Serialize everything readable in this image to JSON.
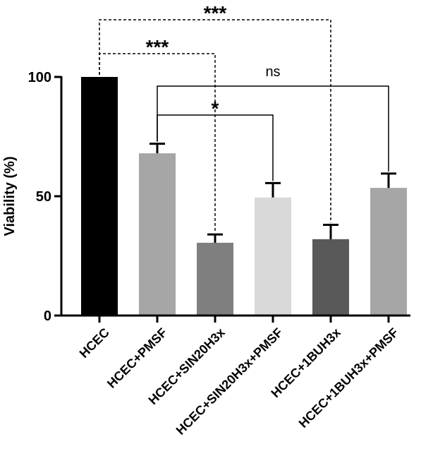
{
  "chart_data": {
    "type": "bar",
    "title": "",
    "xlabel": "",
    "ylabel": "Viability (%)",
    "ylim": [
      0,
      100
    ],
    "yticks": [
      0,
      50,
      100
    ],
    "grid": false,
    "categories": [
      "HCEC",
      "HCEC+PMSF",
      "HCEC+SIN20H3x",
      "HCEC+SIN20H3x+PMSF",
      "HCEC+1BUH3x",
      "HCEC+1BUH3x+PMSF"
    ],
    "values": [
      100,
      68,
      30.5,
      49.5,
      32,
      53.5
    ],
    "errors": [
      0,
      4,
      3.5,
      6,
      6,
      6
    ],
    "colors": [
      "#000000",
      "#a6a6a6",
      "#7f7f7f",
      "#d9d9d9",
      "#595959",
      "#a6a6a6"
    ],
    "significance": [
      {
        "from": 0,
        "to": 2,
        "label": "***",
        "style": "dashed"
      },
      {
        "from": 0,
        "to": 4,
        "label": "***",
        "style": "dashed"
      },
      {
        "from": 1,
        "to": 3,
        "label": "*",
        "style": "solid"
      },
      {
        "from": 1,
        "to": 5,
        "label": "ns",
        "style": "solid"
      }
    ]
  }
}
